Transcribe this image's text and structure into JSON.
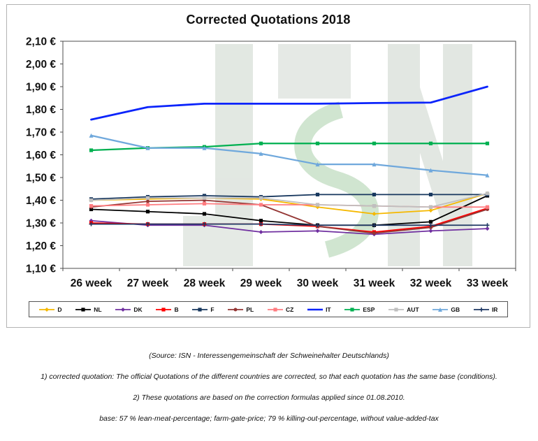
{
  "watermark": "ISN",
  "chart_data": {
    "type": "line",
    "title": "Corrected Quotations 2018",
    "x": [
      "26 week",
      "27 week",
      "28 week",
      "29 week",
      "30 week",
      "31 week",
      "32 week",
      "33 week"
    ],
    "ylim": [
      1.1,
      2.1
    ],
    "ytick_step": 0.1,
    "ytick_format": "0,00 €",
    "grid": false,
    "legend_position": "bottom",
    "series": [
      {
        "name": "D",
        "color": "#F5B800",
        "marker": "diamond",
        "width": 1.8,
        "values": [
          1.4,
          1.405,
          1.41,
          1.405,
          1.37,
          1.34,
          1.355,
          1.43
        ]
      },
      {
        "name": "NL",
        "color": "#000000",
        "marker": "square",
        "width": 1.8,
        "values": [
          1.36,
          1.35,
          1.34,
          1.31,
          1.29,
          1.29,
          1.305,
          1.42
        ]
      },
      {
        "name": "DK",
        "color": "#7030A0",
        "marker": "diamond",
        "width": 1.8,
        "values": [
          1.31,
          1.29,
          1.29,
          1.26,
          1.265,
          1.25,
          1.265,
          1.275
        ]
      },
      {
        "name": "B",
        "color": "#FF0000",
        "marker": "square",
        "width": 1.8,
        "values": [
          1.3,
          1.295,
          1.295,
          1.295,
          1.285,
          1.26,
          1.285,
          1.365
        ]
      },
      {
        "name": "F",
        "color": "#17375E",
        "marker": "square",
        "width": 1.8,
        "values": [
          1.405,
          1.415,
          1.42,
          1.415,
          1.425,
          1.425,
          1.425,
          1.425
        ]
      },
      {
        "name": "PL",
        "color": "#943634",
        "marker": "circle",
        "width": 1.8,
        "values": [
          1.37,
          1.395,
          1.4,
          1.38,
          1.285,
          1.255,
          1.28,
          1.36
        ]
      },
      {
        "name": "CZ",
        "color": "#FF7C80",
        "marker": "square",
        "width": 1.8,
        "values": [
          1.375,
          1.38,
          1.385,
          1.38,
          1.38,
          1.375,
          1.37,
          1.37
        ]
      },
      {
        "name": "IT",
        "color": "#0B24FB",
        "marker": "none",
        "width": 2.8,
        "values": [
          1.755,
          1.81,
          1.825,
          1.825,
          1.825,
          1.828,
          1.83,
          1.9
        ]
      },
      {
        "name": "ESP",
        "color": "#00B050",
        "marker": "square",
        "width": 2.2,
        "values": [
          1.62,
          1.63,
          1.635,
          1.65,
          1.65,
          1.65,
          1.65,
          1.65
        ]
      },
      {
        "name": "AUT",
        "color": "#BFBFBF",
        "marker": "square",
        "width": 1.8,
        "values": [
          1.4,
          1.41,
          1.41,
          1.41,
          1.38,
          1.375,
          1.37,
          1.43
        ]
      },
      {
        "name": "GB",
        "color": "#6FA8DC",
        "marker": "triangle",
        "width": 2.2,
        "values": [
          1.685,
          1.63,
          1.63,
          1.605,
          1.558,
          1.558,
          1.532,
          1.51
        ]
      },
      {
        "name": "IR",
        "color": "#1F3864",
        "marker": "plus",
        "width": 1.8,
        "values": [
          1.295,
          1.295,
          1.295,
          1.295,
          1.29,
          1.29,
          1.29,
          1.29
        ]
      }
    ]
  },
  "footer": {
    "lines": [
      "(Source: ISN - Interessengemeinschaft der Schweinehalter Deutschlands)",
      "1) corrected quotation: The official Quotations of the different countries are corrected, so that each quotation has the same base (conditions).",
      "2) These quotations are based on the correction formulas applied since 01.08.2010.",
      "base: 57 % lean-meat-percentage; farm-gate-price; 79 % killing-out-percentage, without value-added-tax"
    ]
  }
}
